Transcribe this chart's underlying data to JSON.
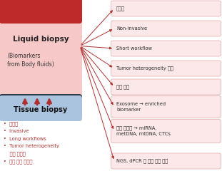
{
  "liquid_biopsy_title": "Liquid biopsy",
  "liquid_biopsy_subtitle": "(Biomarkers\nfrom Body fluids)",
  "tissue_biopsy_title": "Tissue biopsy",
  "tissue_bullet_color": "#b03030",
  "tissue_bullets": [
    "•  고비용",
    "•  Invasive",
    "•  Long workflows",
    "•  Tumor heterogeneity",
    "    분석 어려움",
    "•  조기 발견 불가능"
  ],
  "right_boxes": [
    "저비용",
    "Non-invasive",
    "Short workflow",
    "Tumor heterogeneity 분석",
    "조기 진단",
    "Exosome → enriched\nbiomarker",
    "타곳 다양화 → miRNA,\nmetDNA, mtDNA, CTCs",
    "NGS, dPCR 등 검증 기술 발진"
  ],
  "liquid_box_bg": "#f7c8c8",
  "liquid_box_top_color": "#be2a2a",
  "tissue_box_dark": "#2d3a4a",
  "tissue_box_light": "#aac4e0",
  "right_box_bg": "#fce8e8",
  "right_box_border": "#e0aaaa",
  "arrow_color": "#b03030",
  "bg_color": "#ffffff",
  "arrow_up_color": "#b03030",
  "fig_w": 3.11,
  "fig_h": 2.4,
  "dpi": 100
}
